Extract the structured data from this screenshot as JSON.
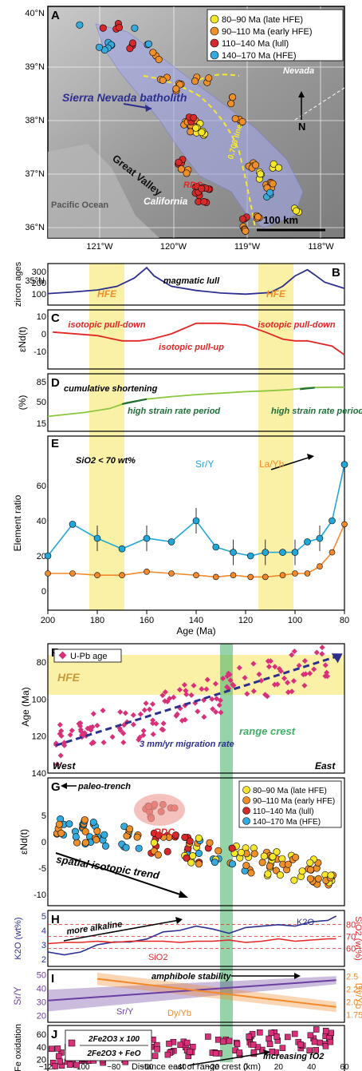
{
  "colors": {
    "late_hfe": "#f7e72c",
    "early_hfe": "#ee8f2a",
    "lull": "#d62a2a",
    "hfe_old": "#35aadd",
    "navy": "#2d2f8f",
    "red_line": "#e32626",
    "green_light": "#8cc63f",
    "green_dark": "#1f6e3a",
    "cyan": "#22a7d9",
    "orange": "#f28a2b",
    "purple": "#6b3fa0",
    "magenta": "#d9307a",
    "hfe_band": "#fbf1a6",
    "crest_green": "#3fae63"
  },
  "legend_map": [
    "80–90 Ma (late HFE)",
    "90–110 Ma (early HFE)",
    "110–140 Ma (lull)",
    "140–170 Ma (HFE)"
  ],
  "legend_g": [
    "80–90 Ma (late HFE)",
    "90–110 Ma (early HFE)",
    "110–140 Ma (lull)",
    "140–170 Ma (HFE)"
  ],
  "map": {
    "panel": "A",
    "lat_labels": [
      "40°N",
      "39°N",
      "38°N",
      "37°N",
      "36°N",
      "35°N"
    ],
    "lon_labels": [
      "121°W",
      "120°W",
      "119°W",
      "118°W"
    ],
    "labels": {
      "batholith": "Sierra Nevada batholith",
      "great_valley": "Great Valley",
      "nevada": "Nevada",
      "california": "California",
      "ocean": "Pacific Ocean",
      "rdc": "RDC",
      "sr_line": "0.706 line",
      "north": "N",
      "scale": "100 km"
    }
  },
  "panels": {
    "B": {
      "letter": "B",
      "ylabel": "zircon ages",
      "labels": [
        "magmatic lull",
        "HFE",
        "HFE"
      ],
      "yticks": [
        "300",
        "200",
        "100"
      ]
    },
    "C": {
      "letter": "C",
      "ylabel": "εNd(t)",
      "labels": [
        "isotopic pull-down",
        "isotopic pull-up",
        "isotopic pull-down"
      ],
      "yticks": [
        "10",
        "0",
        "-10"
      ]
    },
    "D": {
      "letter": "D",
      "ylabel": "(%)",
      "labels": [
        "cumulative shortening",
        "high strain rate period",
        "high strain rate period"
      ],
      "yticks": [
        "85",
        "50",
        "15"
      ]
    },
    "E": {
      "letter": "E",
      "ylabel": "Element ratio",
      "labels": [
        "SiO2 < 70 wt%",
        "Sr/Y",
        "La/Yb"
      ],
      "yticks": [
        "60",
        "40",
        "20",
        "0"
      ],
      "xticks": [
        "200",
        "180",
        "160",
        "140",
        "120",
        "100",
        "80"
      ],
      "xlabel": "Age (Ma)"
    },
    "F": {
      "letter": "F",
      "ylabel": "Age (Ma)",
      "legend": "U-Pb age",
      "labels": [
        "HFE",
        "3 mm/yr migration rate",
        "range crest",
        "West",
        "East"
      ],
      "yticks": [
        "80",
        "100",
        "120",
        "140"
      ]
    },
    "G": {
      "letter": "G",
      "ylabel": "εNd(t)",
      "labels": [
        "paleo-trench",
        "RDC",
        "spatial isotopic trend"
      ],
      "yticks": [
        "5",
        "0",
        "-5",
        "-10"
      ]
    },
    "H": {
      "letter": "H",
      "ylabel": "K2O (wt%)",
      "ylabel2": "SiO2 (wt%)",
      "labels": [
        "more alkaline",
        "K2O",
        "SiO2"
      ],
      "yticks": [
        "5",
        "4",
        "3",
        "2"
      ],
      "yticks2": [
        "80",
        "70",
        "60"
      ]
    },
    "I": {
      "letter": "I",
      "ylabel": "Sr/Y",
      "ylabel2": "Dy/Yb",
      "labels": [
        "amphibole stability",
        "Sr/Y",
        "Dy/Yb"
      ],
      "yticks": [
        "50",
        "40",
        "30",
        "20"
      ],
      "yticks2": [
        "2.5",
        "2.25",
        "2.0",
        "1.75"
      ]
    },
    "J": {
      "letter": "J",
      "ylabel": "Fe oxidation",
      "labels": [
        "increasing fO2"
      ],
      "legend_num": "2Fe2O3 x 100",
      "legend_den": "2Fe2O3 + FeO",
      "yticks": [
        "60",
        "40",
        "20"
      ],
      "xticks": [
        "−120",
        "−100",
        "−80",
        "−60",
        "−40",
        "−20",
        "0",
        "20",
        "40",
        "60"
      ],
      "xlabel": "Distance east of range crest (km)"
    }
  },
  "chart_data": [
    {
      "panel": "B",
      "type": "line",
      "x": [
        200,
        190,
        180,
        172,
        165,
        160,
        157,
        150,
        140,
        130,
        120,
        110,
        105,
        100,
        95,
        92,
        88,
        80
      ],
      "values": [
        80,
        95,
        115,
        150,
        230,
        330,
        250,
        150,
        110,
        85,
        75,
        90,
        150,
        250,
        310,
        260,
        190,
        130
      ]
    },
    {
      "panel": "C",
      "type": "line",
      "x": [
        198,
        180,
        170,
        163,
        158,
        150,
        140,
        130,
        120,
        112,
        105,
        100,
        95,
        85,
        80
      ],
      "values": [
        1,
        -1,
        -4,
        -4,
        -3,
        0,
        6,
        6,
        5,
        1,
        -3,
        -4,
        -4,
        -7,
        -12
      ]
    },
    {
      "panel": "D",
      "type": "line",
      "x": [
        200,
        185,
        175,
        168,
        160,
        150,
        140,
        130,
        120,
        110,
        102,
        95,
        85,
        80
      ],
      "values": [
        30,
        38,
        46,
        58,
        65,
        70,
        74,
        77,
        80,
        82,
        84,
        88,
        89,
        89
      ]
    },
    {
      "panel": "E",
      "type": "line",
      "name": "Sr/Y",
      "x": [
        200,
        190,
        180,
        170,
        160,
        150,
        140,
        132,
        125,
        118,
        112,
        105,
        100,
        95,
        90,
        85,
        80
      ],
      "values": [
        20,
        38,
        30,
        24,
        30,
        28,
        40,
        25,
        22,
        20,
        22,
        22,
        22,
        28,
        30,
        40,
        72
      ]
    },
    {
      "panel": "E",
      "type": "line",
      "name": "La/Yb",
      "x": [
        200,
        190,
        180,
        170,
        160,
        150,
        140,
        132,
        125,
        118,
        112,
        105,
        100,
        95,
        90,
        85,
        80
      ],
      "values": [
        10,
        10,
        9,
        9,
        11,
        10,
        9,
        8,
        9,
        8,
        8,
        9,
        10,
        10,
        14,
        22,
        38
      ]
    },
    {
      "panel": "F",
      "type": "scatter",
      "name": "U-Pb age",
      "xlim": [
        -120,
        60
      ],
      "ylim": [
        140,
        70
      ],
      "trend": {
        "x": [
          -115,
          55
        ],
        "y": [
          125,
          77
        ]
      }
    },
    {
      "panel": "G",
      "type": "scatter",
      "xlim": [
        -120,
        60
      ],
      "ylim": [
        -12,
        8
      ]
    },
    {
      "panel": "H",
      "type": "line",
      "name": "K2O",
      "x": [
        -120,
        -110,
        -100,
        -90,
        -80,
        -70,
        -60,
        -50,
        -40,
        -30,
        -20,
        -10,
        0,
        10,
        20,
        30,
        40,
        50,
        55
      ],
      "values": [
        2.5,
        2.3,
        2.5,
        3.0,
        3.2,
        3.2,
        3.4,
        3.9,
        4.0,
        4.3,
        4.1,
        3.8,
        4.2,
        4.3,
        4.4,
        4.3,
        4.6,
        4.7,
        5.0
      ]
    },
    {
      "panel": "H",
      "type": "line",
      "name": "SiO2",
      "x": [
        -120,
        -110,
        -100,
        -90,
        -80,
        -70,
        -60,
        -50,
        -40,
        -30,
        -20,
        -10,
        0,
        10,
        20,
        30,
        40,
        50,
        55
      ],
      "values": [
        64,
        65,
        65,
        66,
        65,
        66,
        66,
        66,
        65,
        66,
        66,
        67,
        65,
        66,
        68,
        66,
        67,
        68,
        68
      ]
    },
    {
      "panel": "I",
      "type": "line",
      "name": "Sr/Y",
      "x": [
        -120,
        55
      ],
      "values": [
        31,
        46
      ]
    },
    {
      "panel": "I",
      "type": "line",
      "name": "Dy/Yb",
      "x": [
        -90,
        55
      ],
      "values": [
        2.45,
        1.9
      ]
    },
    {
      "panel": "J",
      "type": "scatter",
      "xlim": [
        -120,
        60
      ],
      "ylim": [
        0,
        70
      ]
    }
  ]
}
